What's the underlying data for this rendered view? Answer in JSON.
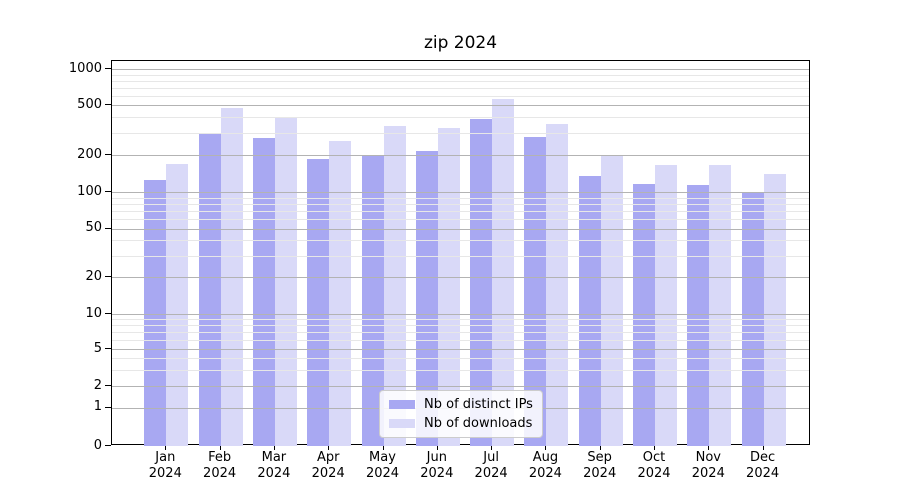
{
  "chart_data": {
    "type": "bar",
    "title": "zip 2024",
    "x_tick_year": "2024",
    "categories": [
      "Jan",
      "Feb",
      "Mar",
      "Apr",
      "May",
      "Jun",
      "Jul",
      "Aug",
      "Sep",
      "Oct",
      "Nov",
      "Dec"
    ],
    "series": [
      {
        "name": "Nb of distinct IPs",
        "color": "#a8a8f2",
        "values": [
          125,
          295,
          272,
          185,
          200,
          215,
          390,
          281,
          136,
          117,
          113,
          98
        ]
      },
      {
        "name": "Nb of downloads",
        "color": "#d9d9f8",
        "values": [
          170,
          480,
          405,
          257,
          340,
          329,
          560,
          352,
          197,
          165,
          166,
          139
        ]
      }
    ],
    "yscale": "symlog",
    "ylabel": "",
    "xlabel": "",
    "yticks": [
      1000,
      500,
      200,
      100,
      50,
      20,
      10,
      5,
      2,
      1,
      0
    ],
    "grid": "both",
    "legend_position": "lower-center"
  },
  "colors": {
    "grid_major": "#b3b3b3",
    "grid_minor": "#e7e7e7",
    "spine": "#000000",
    "text": "#000000",
    "legend_border": "#cccccc"
  }
}
